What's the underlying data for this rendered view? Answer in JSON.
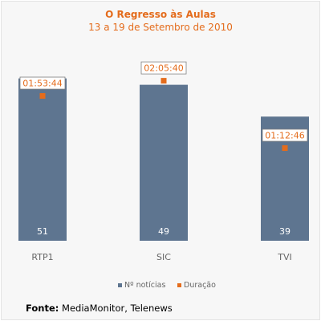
{
  "colors": {
    "bar": "#5e7590",
    "marker": "#e46c1c",
    "title": "#e46c1c",
    "tick_label": "#666666",
    "duration_label": "#e46c1c",
    "background": "#f7f7f7"
  },
  "chart_data": {
    "type": "bar",
    "title": "O Regresso às Aulas",
    "subtitle": "13 a 19 de Setembro de 2010",
    "categories": [
      "RTP1",
      "SIC",
      "TVI"
    ],
    "series": [
      {
        "name": "Nº notícias",
        "type": "bar",
        "values": [
          51,
          49,
          39
        ],
        "ylim": [
          0,
          60
        ]
      },
      {
        "name": "Duração",
        "type": "scatter",
        "values": [
          "01:53:44",
          "02:05:40",
          "01:12:46"
        ],
        "values_seconds": [
          6824,
          7540,
          4366
        ],
        "ylim_seconds": [
          0,
          9000
        ]
      }
    ],
    "legend_position": "bottom",
    "grid": false
  },
  "source": {
    "label": "Fonte:",
    "text": "MediaMonitor, Telenews"
  }
}
